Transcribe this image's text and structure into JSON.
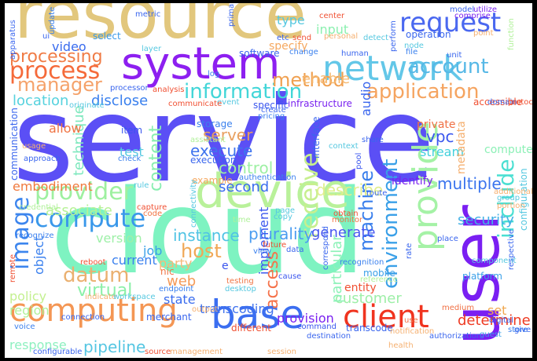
{
  "cloud": {
    "words": [
      {
        "text": "service",
        "color": "#5b4ff5"
      },
      {
        "text": "cloud",
        "color": "#7ef3c1"
      },
      {
        "text": "resource",
        "color": "#e2c77d"
      },
      {
        "text": "system",
        "color": "#8d1ff0"
      },
      {
        "text": "device",
        "color": "#b9f19a"
      },
      {
        "text": "user",
        "color": "#7a1ff2"
      },
      {
        "text": "base",
        "color": "#3b6ef0"
      },
      {
        "text": "network",
        "color": "#63c7e8"
      },
      {
        "text": "request",
        "color": "#4a68f0"
      },
      {
        "text": "client",
        "color": "#f0341f"
      },
      {
        "text": "computing",
        "color": "#f49654"
      },
      {
        "text": "provide",
        "color": "#a5f2a6"
      },
      {
        "text": "process",
        "color": "#f56a3a"
      },
      {
        "text": "application",
        "color": "#f5a460"
      },
      {
        "text": "image",
        "color": "#3c85ee"
      },
      {
        "text": "compute",
        "color": "#3a98ea"
      },
      {
        "text": "provider",
        "color": "#9ef0a0"
      },
      {
        "text": "information",
        "color": "#42d6d8"
      },
      {
        "text": "environment",
        "color": "#3aa0e8"
      },
      {
        "text": "include",
        "color": "#4adfd2"
      },
      {
        "text": "method",
        "color": "#f0a050"
      },
      {
        "text": "manager",
        "color": "#f5a26a"
      },
      {
        "text": "processing",
        "color": "#f07c46"
      },
      {
        "text": "account",
        "color": "#56b8e6"
      },
      {
        "text": "datum",
        "color": "#eab070"
      },
      {
        "text": "receive",
        "color": "#c7ef8e"
      },
      {
        "text": "content",
        "color": "#88eeb0"
      },
      {
        "text": "machine",
        "color": "#3a7fec"
      },
      {
        "text": "access",
        "color": "#f5724a"
      },
      {
        "text": "virtual",
        "color": "#8bf0a8"
      },
      {
        "text": "instance",
        "color": "#50c3e4"
      },
      {
        "text": "plurality",
        "color": "#4a9cf0"
      },
      {
        "text": "server",
        "color": "#e8a060"
      },
      {
        "text": "execute",
        "color": "#3f74ee"
      },
      {
        "text": "control",
        "color": "#9ef0a4"
      },
      {
        "text": "host",
        "color": "#f0a856"
      },
      {
        "text": "associate",
        "color": "#b6f296"
      },
      {
        "text": "customer",
        "color": "#9eefa8"
      },
      {
        "text": "pipeline",
        "color": "#55c6e2"
      },
      {
        "text": "determine",
        "color": "#ee3a22"
      },
      {
        "text": "security",
        "color": "#42b0e6"
      },
      {
        "text": "multiple",
        "color": "#3a74ee"
      },
      {
        "text": "particular",
        "color": "#8df2b8"
      },
      {
        "text": "second",
        "color": "#3a6cee"
      },
      {
        "text": "generate",
        "color": "#4a58f0"
      },
      {
        "text": "describe",
        "color": "#e0ee8e"
      },
      {
        "text": "enable",
        "color": "#f5b870"
      },
      {
        "text": "disclose",
        "color": "#3a80ee"
      },
      {
        "text": "location",
        "color": "#56d2de"
      },
      {
        "text": "technique",
        "color": "#7ee8be"
      },
      {
        "text": "embodiment",
        "color": "#f07a3e"
      },
      {
        "text": "object",
        "color": "#3a80ee"
      },
      {
        "text": "job",
        "color": "#3aa0e8"
      },
      {
        "text": "web",
        "color": "#f59a58"
      },
      {
        "text": "state",
        "color": "#3a6cee"
      },
      {
        "text": "transcoding",
        "color": "#3f72ee"
      },
      {
        "text": "provision",
        "color": "#7a22f0"
      },
      {
        "text": "response",
        "color": "#8ef0c0"
      },
      {
        "text": "audio",
        "color": "#3a66ee"
      },
      {
        "text": "stream",
        "color": "#42d0dc"
      },
      {
        "text": "vpc",
        "color": "#3a56ee"
      },
      {
        "text": "set",
        "color": "#f0a850"
      },
      {
        "text": "test",
        "color": "#56c8e0"
      },
      {
        "text": "allow",
        "color": "#f07444"
      },
      {
        "text": "region",
        "color": "#b0f19a"
      },
      {
        "text": "policy",
        "color": "#c4f090"
      },
      {
        "text": "version",
        "color": "#9ef0a8"
      },
      {
        "text": "current",
        "color": "#3a80ee"
      },
      {
        "text": "implement",
        "color": "#3a56ee"
      },
      {
        "text": "party",
        "color": "#f5b878"
      },
      {
        "text": "input",
        "color": "#8cf0b0"
      },
      {
        "text": "type",
        "color": "#56c8e0"
      },
      {
        "text": "video",
        "color": "#3a6cee"
      },
      {
        "text": "select",
        "color": "#3a9aea"
      },
      {
        "text": "computer",
        "color": "#8cf0b6"
      },
      {
        "text": "metadata",
        "color": "#f5b070"
      },
      {
        "text": "operation",
        "color": "#3a66ee"
      },
      {
        "text": "specify",
        "color": "#f5a860"
      },
      {
        "text": "software",
        "color": "#3a66ee"
      },
      {
        "text": "identify",
        "color": "#7a22f0"
      },
      {
        "text": "mobile",
        "color": "#3aa0e8"
      },
      {
        "text": "entity",
        "color": "#f05032"
      },
      {
        "text": "private",
        "color": "#f07044"
      },
      {
        "text": "interface",
        "color": "#3a66ee"
      },
      {
        "text": "configuration",
        "color": "#56c8e0"
      },
      {
        "text": "storage",
        "color": "#3a80ee"
      },
      {
        "text": "communication",
        "color": "#3a66ee"
      },
      {
        "text": "specific",
        "color": "#3a56ee"
      },
      {
        "text": "example",
        "color": "#f5a860"
      },
      {
        "text": "authentication",
        "color": "#3a80ee"
      },
      {
        "text": "infrastructure",
        "color": "#7a22f0"
      },
      {
        "text": "item",
        "color": "#3a56ee"
      },
      {
        "text": "nic",
        "color": "#f07444"
      },
      {
        "text": "e",
        "color": "#3a56ee"
      },
      {
        "text": "platform",
        "color": "#3aa0e8"
      },
      {
        "text": "accessible",
        "color": "#f05032"
      },
      {
        "text": "execution",
        "color": "#3a66ee"
      },
      {
        "text": "analysis",
        "color": "#f05032"
      },
      {
        "text": "capture",
        "color": "#f05032"
      },
      {
        "text": "code",
        "color": "#f07444"
      },
      {
        "text": "merchant",
        "color": "#3a66ee"
      },
      {
        "text": "connection",
        "color": "#3a66ee"
      },
      {
        "text": "voice",
        "color": "#3a80ee"
      },
      {
        "text": "different",
        "color": "#f05032"
      },
      {
        "text": "command",
        "color": "#3a56ee"
      },
      {
        "text": "transcode",
        "color": "#3a66ee"
      },
      {
        "text": "medium",
        "color": "#f07044"
      },
      {
        "text": "digital",
        "color": "#3a66ee"
      },
      {
        "text": "store",
        "color": "#3a80ee"
      },
      {
        "text": "guest",
        "color": "#3aa0e8"
      },
      {
        "text": "use",
        "color": "#f07044"
      },
      {
        "text": "create",
        "color": "#3a66ee"
      },
      {
        "text": "pricing",
        "color": "#3a80ee"
      },
      {
        "text": "event",
        "color": "#56c8e0"
      },
      {
        "text": "log",
        "color": "#3a80ee"
      },
      {
        "text": "layer",
        "color": "#56c8e0"
      },
      {
        "text": "processor",
        "color": "#3a66ee"
      },
      {
        "text": "change",
        "color": "#3a80ee"
      },
      {
        "text": "node",
        "color": "#56c8e0"
      },
      {
        "text": "file",
        "color": "#3a80ee"
      },
      {
        "text": "unit",
        "color": "#3a66ee"
      },
      {
        "text": "point",
        "color": "#f5b070"
      },
      {
        "text": "utilize",
        "color": "#7a22f0"
      },
      {
        "text": "comprise",
        "color": "#7a22f0"
      },
      {
        "text": "center",
        "color": "#f05032"
      },
      {
        "text": "metric",
        "color": "#3a66ee"
      },
      {
        "text": "apparatus",
        "color": "#3a66ee"
      },
      {
        "text": "update",
        "color": "#3a80ee"
      },
      {
        "text": "perform",
        "color": "#3a66ee"
      },
      {
        "text": "share",
        "color": "#3a66ee"
      },
      {
        "text": "context",
        "color": "#56c8e0"
      },
      {
        "text": "pool",
        "color": "#3a56ee"
      },
      {
        "text": "route",
        "color": "#3a66ee"
      },
      {
        "text": "obtain",
        "color": "#f05032"
      },
      {
        "text": "monitor",
        "color": "#f07444"
      },
      {
        "text": "page",
        "color": "#56c8e0"
      },
      {
        "text": "copy",
        "color": "#56c8e0"
      },
      {
        "text": "view",
        "color": "#3a80ee"
      },
      {
        "text": "future",
        "color": "#f05032"
      },
      {
        "text": "data",
        "color": "#3a66ee"
      },
      {
        "text": "cause",
        "color": "#3a56ee"
      },
      {
        "text": "testing",
        "color": "#f07444"
      },
      {
        "text": "desktop",
        "color": "#56c8e0"
      },
      {
        "text": "endpoint",
        "color": "#3a80ee"
      },
      {
        "text": "reboot",
        "color": "#f05032"
      },
      {
        "text": "notification",
        "color": "#f5b070"
      },
      {
        "text": "destination",
        "color": "#3a66ee"
      },
      {
        "text": "approach",
        "color": "#3a66ee"
      },
      {
        "text": "check",
        "color": "#3a80ee"
      },
      {
        "text": "rule",
        "color": "#56c8e0"
      },
      {
        "text": "time",
        "color": "#b0f19a"
      },
      {
        "text": "domain",
        "color": "#3a66ee"
      },
      {
        "text": "protocol",
        "color": "#f05032"
      },
      {
        "text": "portion",
        "color": "#f5b070"
      },
      {
        "text": "group",
        "color": "#56c8e0"
      },
      {
        "text": "component",
        "color": "#56c8e0"
      },
      {
        "text": "respective",
        "color": "#3a66ee"
      },
      {
        "text": "recognition",
        "color": "#3a80ee"
      },
      {
        "text": "place",
        "color": "#3a66ee"
      },
      {
        "text": "authorization",
        "color": "#3a66ee"
      },
      {
        "text": "give",
        "color": "#3a66ee"
      },
      {
        "text": "etc",
        "color": "#3a66ee"
      },
      {
        "text": "send",
        "color": "#f05032"
      },
      {
        "text": "detect",
        "color": "#56c8e0"
      },
      {
        "text": "personal",
        "color": "#f5b070"
      },
      {
        "text": "model",
        "color": "#3a66ee"
      },
      {
        "text": "usage",
        "color": "#f5b070"
      },
      {
        "text": "configurable",
        "color": "#3a66ee"
      },
      {
        "text": "connectivity",
        "color": "#56c8e0"
      },
      {
        "text": "output",
        "color": "#f5b070"
      },
      {
        "text": "indicate",
        "color": "#f5b070"
      },
      {
        "text": "correspond",
        "color": "#3a66ee"
      },
      {
        "text": "reference",
        "color": "#b0f19a"
      },
      {
        "text": "session",
        "color": "#f5b070"
      },
      {
        "text": "additional",
        "color": "#f5b070"
      },
      {
        "text": "assistant",
        "color": "#b0f19a"
      },
      {
        "text": "remote",
        "color": "#f05032"
      },
      {
        "text": "communicate",
        "color": "#f05032"
      },
      {
        "text": "originate",
        "color": "#56c8e0"
      },
      {
        "text": "workspace",
        "color": "#56c8e0"
      },
      {
        "text": "health",
        "color": "#f5b070"
      },
      {
        "text": "recognize",
        "color": "#3a80ee"
      },
      {
        "text": "credential",
        "color": "#b0f19a"
      },
      {
        "text": "function",
        "color": "#b0f19a"
      },
      {
        "text": "ui",
        "color": "#3a66ee"
      },
      {
        "text": "human",
        "color": "#3a66ee"
      },
      {
        "text": "primary",
        "color": "#3a66ee"
      },
      {
        "text": "source",
        "color": "#f05032"
      },
      {
        "text": "management",
        "color": "#f5b070"
      },
      {
        "text": "rate",
        "color": "#3a66ee"
      }
    ]
  }
}
